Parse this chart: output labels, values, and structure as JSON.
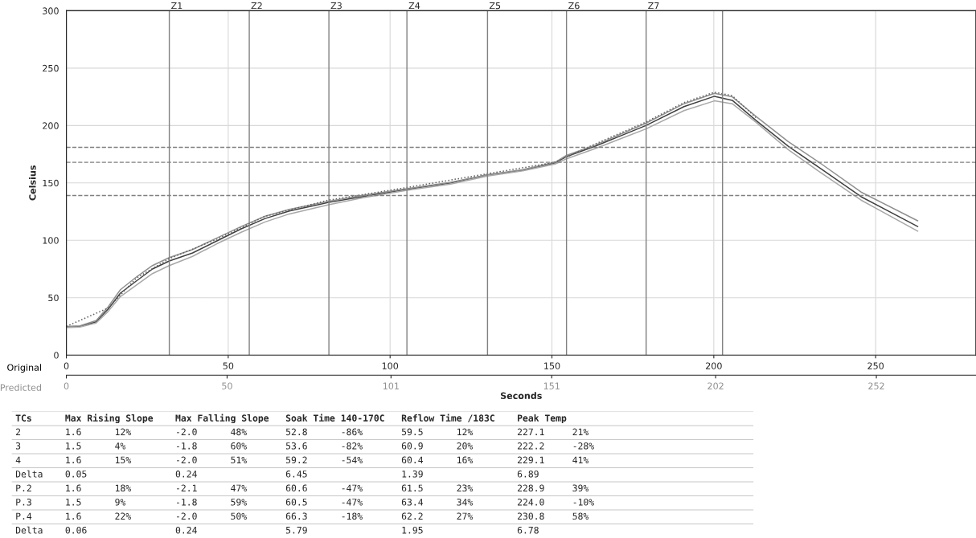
{
  "chart_data": [
    {
      "type": "line",
      "xlabel": "Seconds",
      "ylabel": "Celsius",
      "annotations": [
        "Original",
        "Predicted"
      ],
      "xlim": [
        0,
        281
      ],
      "xticks": [
        0,
        50,
        100,
        150,
        200,
        250
      ],
      "x2lim": [
        0,
        283
      ],
      "x2ticks": [
        0,
        50,
        101,
        151,
        202,
        252
      ],
      "ylim": [
        0,
        300
      ],
      "yticks": [
        0,
        50,
        100,
        150,
        200,
        250,
        300
      ],
      "grid": true,
      "legend": false,
      "marker": "none",
      "ref_lines": [
        {
          "axis": "x",
          "value": 31.8,
          "label": "Z1",
          "color": "#808080"
        },
        {
          "axis": "x",
          "value": 56.5,
          "label": "Z2",
          "color": "#808080"
        },
        {
          "axis": "x",
          "value": 81.1,
          "label": "Z3",
          "color": "#808080"
        },
        {
          "axis": "x",
          "value": 105.2,
          "label": "Z4",
          "color": "#808080"
        },
        {
          "axis": "x",
          "value": 130.1,
          "label": "Z5",
          "color": "#808080"
        },
        {
          "axis": "x",
          "value": 154.5,
          "label": "Z6",
          "color": "#808080"
        },
        {
          "axis": "x",
          "value": 179.1,
          "label": "Z7",
          "color": "#808080"
        },
        {
          "axis": "x",
          "value": 202.7,
          "color": "#808080"
        },
        {
          "axis": "y",
          "value": 181,
          "color": "#808080",
          "line_style": "dashed"
        },
        {
          "axis": "y",
          "value": 168,
          "color": "#808080",
          "line_style": "dashed"
        },
        {
          "axis": "y",
          "value": 139,
          "color": "#808080",
          "line_style": "dashed"
        }
      ],
      "series": [
        {
          "color": "#404040",
          "line_style": "solid",
          "x": [
            0,
            4.2,
            9.2,
            12.9,
            16.7,
            21.6,
            26.6,
            31.8,
            39,
            46.5,
            54,
            61.4,
            68.9,
            81,
            91.3,
            105.2,
            118.7,
            130.1,
            141,
            151,
            154.5,
            163.4,
            179,
            190.8,
            200.2,
            205.7,
            213,
            223,
            233,
            245.5,
            263
          ],
          "values": [
            24.5,
            25,
            29,
            40,
            54,
            64.5,
            75,
            82,
            89,
            99.5,
            110,
            119,
            125.5,
            133,
            138,
            144.5,
            150,
            157,
            161,
            167.5,
            173,
            182,
            200,
            216.5,
            225.5,
            222,
            204.5,
            182,
            162.5,
            138,
            112
          ]
        },
        {
          "color": "#909090",
          "line_style": "solid",
          "x": [
            0,
            4.2,
            9.2,
            12.9,
            16.7,
            21.6,
            26.6,
            31.8,
            39,
            46.5,
            54,
            61.4,
            68.9,
            81,
            91.3,
            105.2,
            118.7,
            130.1,
            141,
            151,
            154.5,
            163.4,
            179,
            190.8,
            200.2,
            205.7,
            213,
            223,
            233,
            245.5,
            263
          ],
          "values": [
            25,
            25.5,
            30,
            42,
            57,
            68,
            78,
            85,
            92,
            102,
            112,
            121,
            127,
            134,
            139,
            145,
            150.5,
            157,
            161.5,
            168,
            174,
            183,
            202,
            219,
            228,
            225,
            208,
            186,
            167,
            142,
            117
          ]
        },
        {
          "color": "#a8a8a8",
          "line_style": "solid",
          "x": [
            0,
            4.2,
            9.2,
            12.9,
            16.7,
            21.6,
            26.6,
            31.8,
            39,
            46.5,
            54,
            61.4,
            68.9,
            81,
            91.3,
            105.2,
            118.7,
            130.1,
            141,
            151,
            154.5,
            163.4,
            179,
            190.8,
            200.2,
            205.7,
            213,
            223,
            233,
            245.5,
            263
          ],
          "values": [
            24,
            24.5,
            28,
            38,
            51,
            61,
            71,
            78,
            86,
            97,
            107,
            116,
            123,
            131,
            137,
            143.5,
            149,
            156,
            160.5,
            166.5,
            171,
            180,
            197,
            213,
            221.5,
            219,
            203,
            179,
            159,
            135,
            108
          ]
        },
        {
          "color": "#606060",
          "line_style": "dotted",
          "x": [
            0,
            12.9,
            21.6,
            31.8,
            46.5,
            61.4,
            81,
            105.2,
            130.1,
            151,
            163.4,
            179,
            190.8,
            200.2,
            205.7,
            213
          ],
          "values": [
            25,
            41,
            67,
            84,
            101,
            121,
            135,
            146,
            158,
            168,
            184,
            203,
            220,
            229,
            226,
            207
          ]
        }
      ]
    },
    {
      "type": "other",
      "annotations": [
        "TCs      Max Rising Slope    Max Falling Slope   Soak Time 140-170C   Reflow Time /183C    Peak Temp",
        "2        1.6      12%        -2.0      48%       52.8      -86%       59.5      12%        227.1     21%",
        "3        1.5      4%         -1.8      60%       53.6      -82%       60.9      20%        222.2     -28%",
        "4        1.6      15%        -2.0      51%       59.2      -54%       60.4      16%        229.1     41%",
        "Delta    0.05                0.24                6.45                 1.39                 6.89",
        "P.2      1.6      18%        -2.1      47%       60.6      -47%       61.5      23%        228.9     39%",
        "P.3      1.5      9%         -1.8      59%       60.5      -47%       63.4      34%        224.0     -10%",
        "P.4      1.6      22%        -2.0      50%       66.3      -18%       62.2      27%        230.8     58%",
        "Delta    0.06                0.24                5.79                 1.95                 6.78"
      ]
    }
  ]
}
